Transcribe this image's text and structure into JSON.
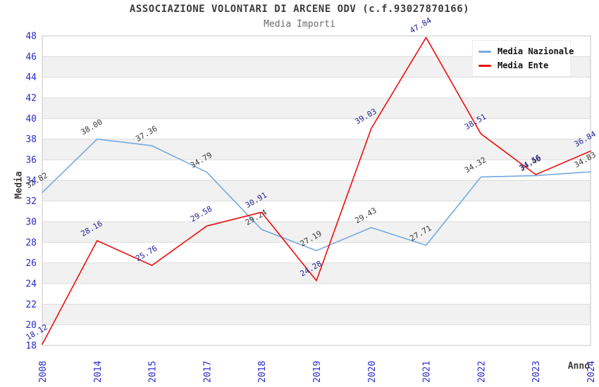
{
  "chart_data": {
    "type": "line",
    "title": "ASSOCIAZIONE VOLONTARI DI ARCENE ODV (c.f.93027870166)",
    "subtitle": "Media Importi",
    "xlabel": "Anno",
    "ylabel": "Media",
    "categories": [
      "2008",
      "2014",
      "2015",
      "2017",
      "2018",
      "2019",
      "2020",
      "2021",
      "2022",
      "2023",
      "2024"
    ],
    "series": [
      {
        "name": "Media Nazionale",
        "color": "#74AADF",
        "label_color": "#3A3A3A",
        "values": [
          32.82,
          38.0,
          37.36,
          34.79,
          29.24,
          27.19,
          29.43,
          27.71,
          34.32,
          34.46,
          34.83
        ]
      },
      {
        "name": "Media Ente",
        "color": "#EE0D0D",
        "label_color": "#24249B",
        "values": [
          18.12,
          28.16,
          25.76,
          29.58,
          30.91,
          24.28,
          39.03,
          47.84,
          38.51,
          34.56,
          36.84
        ]
      }
    ],
    "ylim": [
      18,
      48
    ],
    "ytick_step": 2,
    "grid": true,
    "legend_position": "top-right",
    "band_colors": [
      "#FFFFFF",
      "#F1F1F1"
    ],
    "gridline_color": "#DCDCDC",
    "plot_border_color": "#C6C6C6",
    "axis_tick_color": "#2929CC"
  }
}
